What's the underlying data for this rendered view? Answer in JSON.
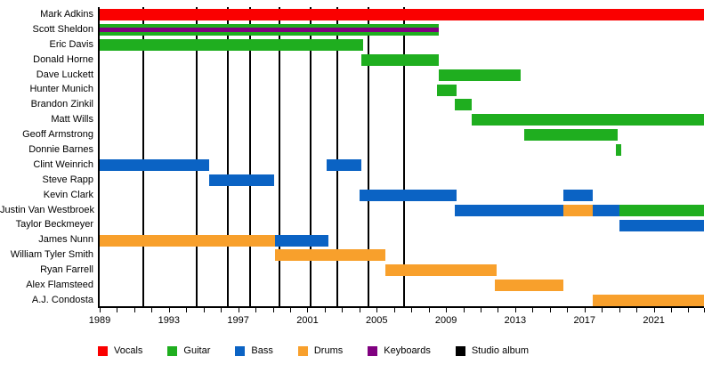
{
  "chart_data": {
    "type": "bar",
    "subtype": "gantt-band-member-timeline",
    "title": "",
    "xlabel": "",
    "ylabel": "",
    "x_domain": [
      1989,
      2023.9
    ],
    "x_major_ticks": [
      1989,
      1993,
      1997,
      2001,
      2005,
      2009,
      2013,
      2017,
      2021
    ],
    "x_minor_tick_interval": 1,
    "grid": false,
    "legend_position": "bottom",
    "role_colors": {
      "vocals": "#fa0000",
      "guitar": "#1fae1f",
      "bass": "#0b63c4",
      "drums": "#f8a02c",
      "keyboards": "#800080",
      "studio_album": "#000000"
    },
    "members": [
      {
        "name": "Mark Adkins",
        "segments": [
          {
            "role": "vocals",
            "start": 1989,
            "end": 2023.9
          }
        ]
      },
      {
        "name": "Scott Sheldon",
        "segments": [
          {
            "role": "guitar",
            "overlay": "keyboards",
            "start": 1989,
            "end": 2008.6
          }
        ]
      },
      {
        "name": "Eric Davis",
        "segments": [
          {
            "role": "guitar",
            "start": 1989,
            "end": 2004.2
          }
        ]
      },
      {
        "name": "Donald Horne",
        "segments": [
          {
            "role": "guitar",
            "start": 2004.1,
            "end": 2008.6
          }
        ]
      },
      {
        "name": "Dave Luckett",
        "segments": [
          {
            "role": "guitar",
            "start": 2008.6,
            "end": 2013.3
          }
        ]
      },
      {
        "name": "Hunter Munich",
        "segments": [
          {
            "role": "guitar",
            "start": 2008.5,
            "end": 2009.6
          }
        ]
      },
      {
        "name": "Brandon Zinkil",
        "segments": [
          {
            "role": "guitar",
            "start": 2009.5,
            "end": 2010.5
          }
        ]
      },
      {
        "name": "Matt Wills",
        "segments": [
          {
            "role": "guitar",
            "start": 2010.5,
            "end": 2023.9
          }
        ]
      },
      {
        "name": "Geoff Armstrong",
        "segments": [
          {
            "role": "guitar",
            "start": 2013.5,
            "end": 2018.9
          }
        ]
      },
      {
        "name": "Donnie Barnes",
        "segments": [
          {
            "role": "guitar",
            "start": 2018.8,
            "end": 2019.1
          }
        ]
      },
      {
        "name": "Clint Weinrich",
        "segments": [
          {
            "role": "bass",
            "start": 1989,
            "end": 1995.3
          },
          {
            "role": "bass",
            "start": 2002.1,
            "end": 2004.1
          }
        ]
      },
      {
        "name": "Steve Rapp",
        "segments": [
          {
            "role": "bass",
            "start": 1995.3,
            "end": 1999.1
          }
        ]
      },
      {
        "name": "Kevin Clark",
        "segments": [
          {
            "role": "bass",
            "start": 2004.0,
            "end": 2009.6
          },
          {
            "role": "bass",
            "start": 2015.8,
            "end": 2017.5
          }
        ]
      },
      {
        "name": "Justin Van Westbroek",
        "segments": [
          {
            "role": "bass",
            "start": 2009.5,
            "end": 2015.8
          },
          {
            "role": "drums",
            "start": 2015.8,
            "end": 2017.5
          },
          {
            "role": "bass",
            "start": 2017.5,
            "end": 2019.0
          },
          {
            "role": "guitar",
            "start": 2019.0,
            "end": 2023.9
          }
        ]
      },
      {
        "name": "Taylor Beckmeyer",
        "segments": [
          {
            "role": "bass",
            "start": 2019.0,
            "end": 2023.9
          }
        ]
      },
      {
        "name": "James Nunn",
        "segments": [
          {
            "role": "drums",
            "start": 1989,
            "end": 1999.1
          },
          {
            "role": "bass",
            "start": 1999.1,
            "end": 2002.2
          }
        ]
      },
      {
        "name": "William Tyler Smith",
        "segments": [
          {
            "role": "drums",
            "start": 1999.1,
            "end": 2005.5
          }
        ]
      },
      {
        "name": "Ryan Farrell",
        "segments": [
          {
            "role": "drums",
            "start": 2005.5,
            "end": 2011.9
          }
        ]
      },
      {
        "name": "Alex Flamsteed",
        "segments": [
          {
            "role": "drums",
            "start": 2011.8,
            "end": 2015.8
          }
        ]
      },
      {
        "name": "A.J. Condosta",
        "segments": [
          {
            "role": "drums",
            "start": 2017.5,
            "end": 2023.9
          }
        ]
      }
    ],
    "album_release_lines": [
      1991.5,
      1994.6,
      1996.4,
      1997.7,
      1999.4,
      2001.2,
      2002.7,
      2004.5,
      2006.6
    ],
    "legend": [
      {
        "label": "Vocals",
        "color": "#fa0000"
      },
      {
        "label": "Guitar",
        "color": "#1fae1f"
      },
      {
        "label": "Bass",
        "color": "#0b63c4"
      },
      {
        "label": "Drums",
        "color": "#f8a02c"
      },
      {
        "label": "Keyboards",
        "color": "#800080"
      },
      {
        "label": "Studio album",
        "color": "#000000"
      }
    ]
  }
}
